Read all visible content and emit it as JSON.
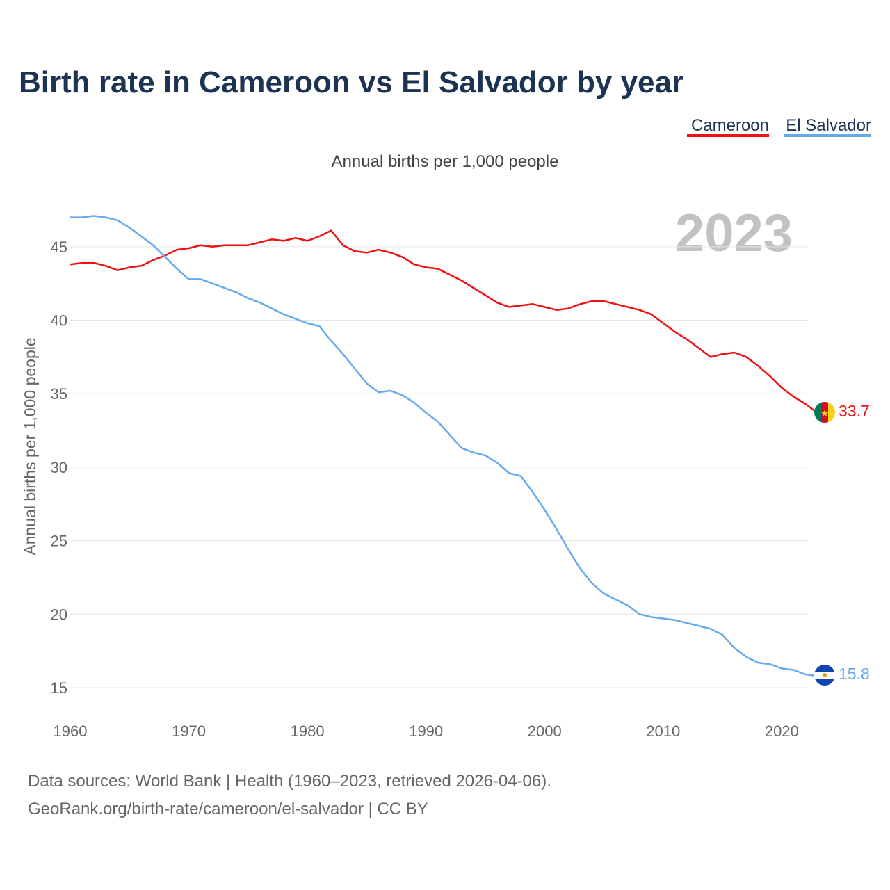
{
  "title": "Birth rate in Cameroon vs El Salvador by year",
  "subtitle": "Annual births per 1,000 people",
  "legend": [
    {
      "label": "Cameroon",
      "color": "#ee1111"
    },
    {
      "label": "El Salvador",
      "color": "#66aaee"
    }
  ],
  "current_year": "2023",
  "footer": {
    "line1": "Data sources: World Bank | Health (1960–2023, retrieved 2026-04-06).",
    "line2": "GeoRank.org/birth-rate/cameroon/el-salvador | CC BY"
  },
  "chart_data": {
    "type": "line",
    "title": "Birth rate in Cameroon vs El Salvador by year",
    "subtitle": "Annual births per 1,000 people",
    "xlabel": "",
    "ylabel": "Annual births per 1,000 people",
    "xlim": [
      1960,
      2024.2
    ],
    "ylim": [
      15,
      47.5
    ],
    "x_ticks": [
      1960,
      1970,
      1980,
      1990,
      2000,
      2010,
      2020
    ],
    "y_ticks": [
      15,
      20,
      25,
      30,
      35,
      40,
      45
    ],
    "grid": true,
    "legend_position": "top-right",
    "x": [
      1960,
      1961,
      1962,
      1963,
      1964,
      1965,
      1966,
      1967,
      1968,
      1969,
      1970,
      1971,
      1972,
      1973,
      1974,
      1975,
      1976,
      1977,
      1978,
      1979,
      1980,
      1981,
      1982,
      1983,
      1984,
      1985,
      1986,
      1987,
      1988,
      1989,
      1990,
      1991,
      1992,
      1993,
      1994,
      1995,
      1996,
      1997,
      1998,
      1999,
      2000,
      2001,
      2002,
      2003,
      2004,
      2005,
      2006,
      2007,
      2008,
      2009,
      2010,
      2011,
      2012,
      2013,
      2014,
      2015,
      2016,
      2017,
      2018,
      2019,
      2020,
      2021,
      2022,
      2023
    ],
    "series": [
      {
        "name": "Cameroon",
        "color": "#ee1111",
        "end_label": "33.7",
        "values": [
          43.8,
          43.9,
          43.9,
          43.7,
          43.4,
          43.6,
          43.7,
          44.1,
          44.4,
          44.8,
          44.9,
          45.1,
          45.0,
          45.1,
          45.1,
          45.1,
          45.3,
          45.5,
          45.4,
          45.6,
          45.4,
          45.7,
          46.1,
          45.1,
          44.7,
          44.6,
          44.8,
          44.6,
          44.3,
          43.8,
          43.6,
          43.5,
          43.1,
          42.7,
          42.2,
          41.7,
          41.2,
          40.9,
          41.0,
          41.1,
          40.9,
          40.7,
          40.8,
          41.1,
          41.3,
          41.3,
          41.1,
          40.9,
          40.7,
          40.4,
          39.8,
          39.2,
          38.7,
          38.1,
          37.5,
          37.7,
          37.8,
          37.5,
          36.9,
          36.2,
          35.4,
          34.8,
          34.3,
          33.7
        ]
      },
      {
        "name": "El Salvador",
        "color": "#66aaee",
        "end_label": "15.8",
        "values": [
          47.0,
          47.0,
          47.1,
          47.0,
          46.8,
          46.3,
          45.7,
          45.1,
          44.3,
          43.5,
          42.8,
          42.8,
          42.5,
          42.2,
          41.9,
          41.5,
          41.2,
          40.8,
          40.4,
          40.1,
          39.8,
          39.6,
          38.6,
          37.7,
          36.7,
          35.7,
          35.1,
          35.2,
          34.9,
          34.4,
          33.7,
          33.1,
          32.2,
          31.3,
          31.0,
          30.8,
          30.3,
          29.6,
          29.4,
          28.3,
          27.1,
          25.8,
          24.4,
          23.1,
          22.1,
          21.4,
          21.0,
          20.6,
          20.0,
          19.8,
          19.7,
          19.6,
          19.4,
          19.2,
          19.0,
          18.6,
          17.7,
          17.1,
          16.7,
          16.6,
          16.3,
          16.2,
          15.9,
          15.8
        ]
      }
    ]
  }
}
